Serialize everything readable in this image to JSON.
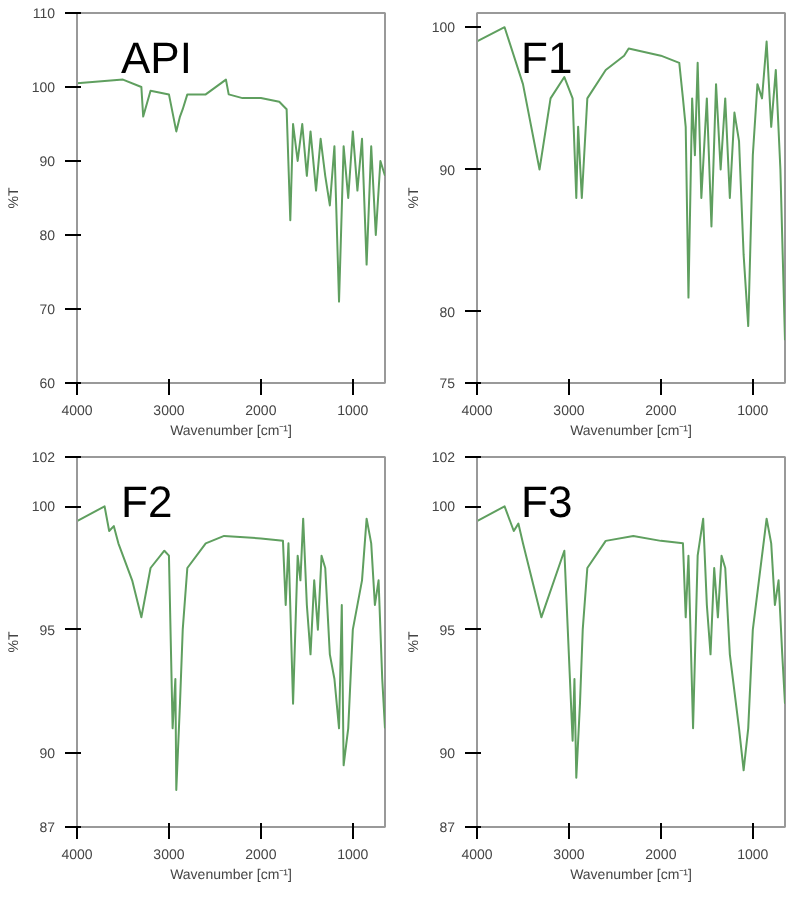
{
  "chart_data": [
    {
      "type": "line",
      "title": "API",
      "xlabel": "Wavenumber [cm⁻¹]",
      "ylabel": "%T",
      "xlim": [
        4000,
        650
      ],
      "xticks": [
        4000,
        3000,
        2000,
        1000
      ],
      "ylim": [
        60,
        110
      ],
      "yticks": [
        60,
        70,
        80,
        90,
        100,
        110
      ],
      "grid": false,
      "x": [
        4000,
        3500,
        3300,
        3280,
        3200,
        3000,
        2920,
        2880,
        2850,
        2800,
        2600,
        2380,
        2350,
        2200,
        2000,
        1800,
        1720,
        1680,
        1650,
        1600,
        1550,
        1500,
        1460,
        1400,
        1350,
        1300,
        1250,
        1200,
        1150,
        1100,
        1050,
        1000,
        950,
        900,
        850,
        800,
        750,
        700,
        650
      ],
      "series": [
        {
          "color": "#5f9f5f",
          "values": [
            100.5,
            101,
            100,
            96,
            99.5,
            99,
            94,
            96,
            97,
            99,
            99,
            101,
            99,
            98.5,
            98.5,
            98,
            97,
            82,
            95,
            90,
            95,
            88,
            94,
            86,
            93,
            88,
            84,
            92,
            71,
            92,
            85,
            94,
            86,
            93,
            76,
            92,
            80,
            90,
            88
          ]
        }
      ]
    },
    {
      "type": "line",
      "title": "F1",
      "xlabel": "Wavenumber [cm⁻¹]",
      "ylabel": "%T",
      "xlim": [
        4000,
        650
      ],
      "xticks": [
        4000,
        3000,
        2000,
        1000
      ],
      "ylim": [
        75,
        101
      ],
      "yticks": [
        75,
        80,
        90,
        100
      ],
      "grid": false,
      "x": [
        4000,
        3700,
        3500,
        3320,
        3200,
        3050,
        2960,
        2920,
        2900,
        2860,
        2800,
        2600,
        2400,
        2350,
        2000,
        1800,
        1760,
        1730,
        1700,
        1660,
        1630,
        1600,
        1560,
        1500,
        1450,
        1400,
        1350,
        1300,
        1250,
        1200,
        1150,
        1100,
        1050,
        1000,
        950,
        900,
        850,
        800,
        750,
        700,
        650
      ],
      "series": [
        {
          "color": "#5f9f5f",
          "values": [
            99,
            100,
            96,
            90,
            95,
            96.5,
            95,
            88,
            93,
            88,
            95,
            97,
            98,
            98.5,
            98,
            97.5,
            95,
            93,
            81,
            95,
            91,
            97.5,
            88,
            95,
            86,
            96,
            90,
            95,
            88,
            94,
            92,
            84,
            79,
            91,
            96,
            95,
            99,
            93,
            97,
            90,
            78
          ]
        }
      ]
    },
    {
      "type": "line",
      "title": "F2",
      "xlabel": "Wavenumber [cm⁻¹]",
      "ylabel": "%T",
      "xlim": [
        4000,
        650
      ],
      "xticks": [
        4000,
        3000,
        2000,
        1000
      ],
      "ylim": [
        87,
        102
      ],
      "yticks": [
        87,
        90,
        95,
        100,
        102
      ],
      "grid": false,
      "x": [
        4000,
        3700,
        3650,
        3600,
        3550,
        3400,
        3300,
        3200,
        3050,
        3000,
        2960,
        2930,
        2920,
        2880,
        2850,
        2800,
        2600,
        2400,
        2000,
        1760,
        1730,
        1700,
        1650,
        1600,
        1570,
        1540,
        1500,
        1460,
        1420,
        1380,
        1340,
        1300,
        1250,
        1200,
        1150,
        1120,
        1100,
        1050,
        1000,
        900,
        850,
        800,
        760,
        720,
        680,
        650
      ],
      "series": [
        {
          "color": "#5f9f5f",
          "values": [
            99.4,
            100,
            99,
            99.2,
            98.5,
            97,
            95.5,
            97.5,
            98.2,
            98,
            91,
            93,
            88.5,
            92,
            95,
            97.5,
            98.5,
            98.8,
            98.7,
            98.6,
            96,
            98.5,
            92,
            98,
            97,
            99.5,
            96,
            94,
            97,
            95,
            98,
            97.5,
            94,
            93,
            91,
            96,
            89.5,
            91,
            95,
            97,
            99.5,
            98.5,
            96,
            97,
            93,
            91
          ]
        }
      ]
    },
    {
      "type": "line",
      "title": "F3",
      "xlabel": "Wavenumber [cm⁻¹]",
      "ylabel": "%T",
      "xlim": [
        4000,
        650
      ],
      "xticks": [
        4000,
        3000,
        2000,
        1000
      ],
      "ylim": [
        87,
        102
      ],
      "yticks": [
        87,
        90,
        95,
        100,
        102
      ],
      "grid": false,
      "x": [
        4000,
        3700,
        3600,
        3550,
        3500,
        3300,
        3050,
        2960,
        2940,
        2920,
        2880,
        2850,
        2800,
        2600,
        2300,
        2000,
        1760,
        1730,
        1700,
        1650,
        1600,
        1540,
        1500,
        1460,
        1420,
        1380,
        1340,
        1300,
        1250,
        1150,
        1100,
        1050,
        1000,
        850,
        800,
        760,
        720,
        680,
        650
      ],
      "series": [
        {
          "color": "#5f9f5f",
          "values": [
            99.4,
            100,
            99,
            99.3,
            98.5,
            95.5,
            98.2,
            90.5,
            93,
            89,
            92,
            95,
            97.5,
            98.6,
            98.8,
            98.6,
            98.5,
            95.5,
            98,
            91,
            98,
            99.5,
            96,
            94,
            97.5,
            95.5,
            98,
            97.5,
            94,
            91,
            89.3,
            91,
            95,
            99.5,
            98.5,
            96,
            97,
            94,
            92
          ]
        }
      ]
    }
  ]
}
